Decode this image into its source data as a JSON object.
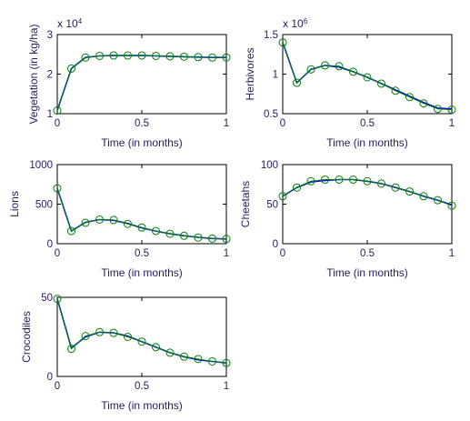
{
  "chart_data": [
    {
      "type": "line",
      "xlabel": "Time (in months)",
      "ylabel": "Vegetation (in kg/ha)",
      "exponent_label": "x 10",
      "exponent_power": "4",
      "xlim": [
        0,
        1
      ],
      "ylim": [
        1,
        3
      ],
      "xticks": [
        0,
        0.5,
        1
      ],
      "xtick_labels": [
        "0",
        "0.5",
        "1"
      ],
      "yticks": [
        1,
        2,
        3
      ],
      "ytick_labels": [
        "1",
        "2",
        "3"
      ],
      "colors": {
        "model": "#0000ff",
        "fit": "#008000"
      },
      "x": [
        0,
        0.0833,
        0.1667,
        0.25,
        0.3333,
        0.4167,
        0.5,
        0.5833,
        0.6667,
        0.75,
        0.8333,
        0.9167,
        1
      ],
      "series": [
        {
          "values": [
            1.08,
            2.14,
            2.42,
            2.46,
            2.47,
            2.47,
            2.47,
            2.46,
            2.45,
            2.44,
            2.43,
            2.42,
            2.42
          ],
          "style": "line"
        },
        {
          "values": [
            1.08,
            2.14,
            2.42,
            2.46,
            2.47,
            2.47,
            2.47,
            2.46,
            2.45,
            2.44,
            2.43,
            2.42,
            2.42
          ],
          "style": "line-markers"
        }
      ]
    },
    {
      "type": "line",
      "xlabel": "Time (in months)",
      "ylabel": "Herbivores",
      "exponent_label": "x 10",
      "exponent_power": "6",
      "xlim": [
        0,
        1
      ],
      "ylim": [
        0.5,
        1.5
      ],
      "xticks": [
        0,
        0.5,
        1
      ],
      "xtick_labels": [
        "0",
        "0.5",
        "1"
      ],
      "yticks": [
        0.5,
        1,
        1.5
      ],
      "ytick_labels": [
        "0.5",
        "1",
        "1.5"
      ],
      "colors": {
        "model": "#0000ff",
        "fit": "#008000"
      },
      "x": [
        0,
        0.0833,
        0.1667,
        0.25,
        0.3333,
        0.4167,
        0.5,
        0.5833,
        0.6667,
        0.75,
        0.8333,
        0.9167,
        1
      ],
      "series": [
        {
          "values": [
            1.4,
            0.89,
            1.06,
            1.11,
            1.09,
            1.03,
            0.96,
            0.88,
            0.8,
            0.72,
            0.64,
            0.57,
            0.56
          ],
          "style": "line"
        },
        {
          "values": [
            1.4,
            0.89,
            1.06,
            1.11,
            1.1,
            1.03,
            0.96,
            0.88,
            0.79,
            0.71,
            0.63,
            0.56,
            0.55
          ],
          "style": "line-markers"
        }
      ]
    },
    {
      "type": "line",
      "xlabel": "Time (in months)",
      "ylabel": "Lions",
      "xlim": [
        0,
        1
      ],
      "ylim": [
        0,
        1000
      ],
      "xticks": [
        0,
        0.5,
        1
      ],
      "xtick_labels": [
        "0",
        "0.5",
        "1"
      ],
      "yticks": [
        0,
        500,
        1000
      ],
      "ytick_labels": [
        "0",
        "500",
        "1000"
      ],
      "colors": {
        "model": "#0000ff",
        "fit": "#008000"
      },
      "x": [
        0,
        0.0833,
        0.1667,
        0.25,
        0.3333,
        0.4167,
        0.5,
        0.5833,
        0.6667,
        0.75,
        0.8333,
        0.9167,
        1
      ],
      "series": [
        {
          "values": [
            700,
            160,
            270,
            305,
            295,
            255,
            200,
            160,
            125,
            100,
            80,
            65,
            60
          ],
          "style": "line"
        },
        {
          "values": [
            700,
            160,
            265,
            305,
            300,
            250,
            205,
            160,
            125,
            100,
            78,
            65,
            60
          ],
          "style": "line-markers"
        }
      ]
    },
    {
      "type": "line",
      "xlabel": "Time (in months)",
      "ylabel": "Cheetahs",
      "xlim": [
        0,
        1
      ],
      "ylim": [
        0,
        100
      ],
      "xticks": [
        0,
        0.5,
        1
      ],
      "xtick_labels": [
        "0",
        "0.5",
        "1"
      ],
      "yticks": [
        0,
        50,
        100
      ],
      "ytick_labels": [
        "0",
        "50",
        "100"
      ],
      "colors": {
        "model": "#0000ff",
        "fit": "#008000"
      },
      "x": [
        0,
        0.0833,
        0.1667,
        0.25,
        0.3333,
        0.4167,
        0.5,
        0.5833,
        0.6667,
        0.75,
        0.8333,
        0.9167,
        1
      ],
      "series": [
        {
          "values": [
            60,
            71,
            78,
            80,
            81,
            81,
            79,
            76,
            71,
            66,
            60,
            55,
            49
          ],
          "style": "line"
        },
        {
          "values": [
            60,
            71,
            79,
            81,
            81,
            81,
            79,
            76,
            71,
            66,
            60,
            55,
            48
          ],
          "style": "line-markers"
        }
      ]
    },
    {
      "type": "line",
      "xlabel": "Time (in months)",
      "ylabel": "Crocodiles",
      "xlim": [
        0,
        1
      ],
      "ylim": [
        0,
        50
      ],
      "xticks": [
        0,
        0.5,
        1
      ],
      "xtick_labels": [
        "0",
        "0.5",
        "1"
      ],
      "yticks": [
        0,
        50
      ],
      "ytick_labels": [
        "0",
        "50"
      ],
      "colors": {
        "model": "#0000ff",
        "fit": "#008000"
      },
      "x": [
        0,
        0.0833,
        0.1667,
        0.25,
        0.3333,
        0.4167,
        0.5,
        0.5833,
        0.6667,
        0.75,
        0.8333,
        0.9167,
        1
      ],
      "series": [
        {
          "values": [
            49,
            18,
            25,
            28,
            27.5,
            25.5,
            22,
            18.5,
            15,
            12.5,
            10.5,
            9.5,
            8.5
          ],
          "style": "line"
        },
        {
          "values": [
            49,
            17.5,
            25.5,
            28,
            27.5,
            25,
            22,
            18.5,
            15,
            12.5,
            11,
            9.5,
            8.5
          ],
          "style": "line-markers"
        }
      ]
    }
  ]
}
